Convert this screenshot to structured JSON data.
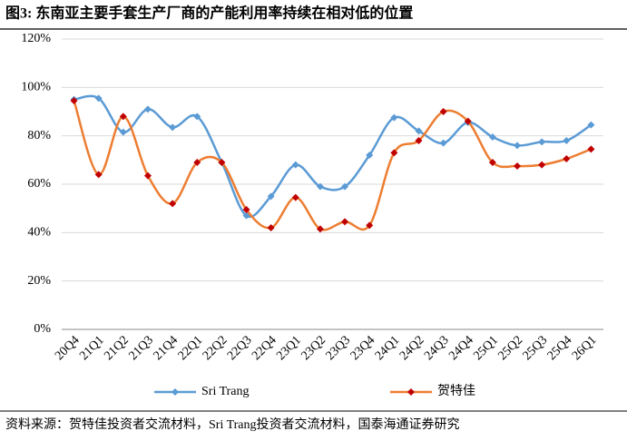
{
  "chart_data": {
    "type": "line",
    "title": "图3:  东南亚主要手套生产厂商的产能利用率持续在相对低的位置",
    "categories": [
      "20Q4",
      "21Q1",
      "21Q2",
      "21Q3",
      "21Q4",
      "22Q1",
      "22Q2",
      "22Q3",
      "22Q4",
      "23Q1",
      "23Q2",
      "23Q3",
      "23Q4",
      "24Q1",
      "24Q2",
      "24Q3",
      "24Q4",
      "25Q1",
      "25Q2",
      "25Q3",
      "25Q4",
      "26Q1"
    ],
    "series": [
      {
        "name": "Sri Trang",
        "color": "#5b9bd5",
        "marker_color": "#5b9bd5",
        "values": [
          95,
          95.5,
          81.5,
          91,
          83.5,
          88,
          69,
          47,
          55,
          68,
          59,
          59,
          72,
          87.5,
          82,
          77,
          85.5,
          79.5,
          76,
          77.5,
          78,
          84.5
        ]
      },
      {
        "name": "贺特佳",
        "color": "#ed7d31",
        "marker_color": "#c00000",
        "values": [
          94.5,
          64,
          88,
          63.5,
          52,
          69,
          69,
          49.5,
          42,
          54.5,
          41.5,
          44.5,
          43,
          73,
          78,
          90,
          86,
          69,
          67.5,
          68,
          70.5,
          74.5
        ]
      }
    ],
    "ylim": [
      0,
      120
    ],
    "yticks": [
      {
        "value": 0,
        "label": "0%"
      },
      {
        "value": 20,
        "label": "20%"
      },
      {
        "value": 40,
        "label": "40%"
      },
      {
        "value": 60,
        "label": "60%"
      },
      {
        "value": 80,
        "label": "80%"
      },
      {
        "value": 100,
        "label": "100%"
      },
      {
        "value": 120,
        "label": "120%"
      }
    ],
    "grid": true,
    "smooth": true,
    "legend": "bottom",
    "source": "资料来源：贺特佳投资者交流材料，Sri Trang投资者交流材料，国泰海通证券研究"
  }
}
